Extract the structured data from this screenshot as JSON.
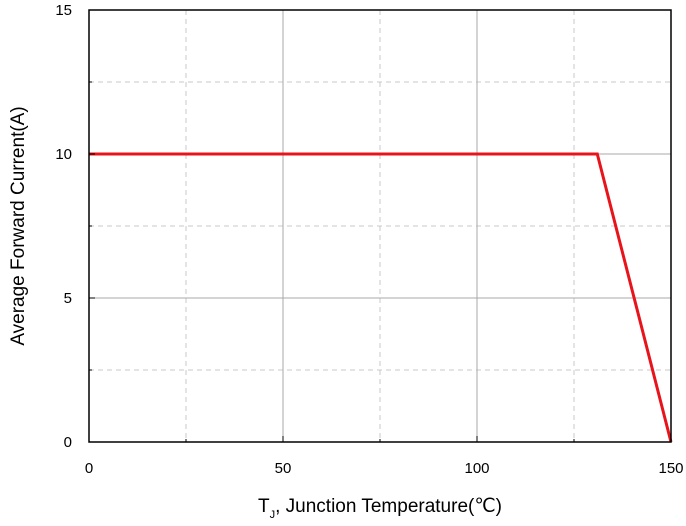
{
  "chart_data": {
    "type": "line",
    "title": "",
    "xlabel_main": "T",
    "xlabel_sub": "J",
    "xlabel_rest": ", Junction Temperature(℃)",
    "ylabel": "Average Forward Current(A)",
    "xlim": [
      0,
      150
    ],
    "ylim": [
      0,
      15
    ],
    "x_ticks": [
      0,
      50,
      100,
      150
    ],
    "x_tick_labels": [
      "0",
      "50",
      "100",
      "150"
    ],
    "y_ticks": [
      0,
      5,
      10,
      15
    ],
    "y_tick_labels": [
      "0",
      "5",
      "10",
      "15"
    ],
    "major_grid_x": [
      50,
      100
    ],
    "major_grid_y": [
      5,
      10
    ],
    "minor_grid_x": [
      25,
      75,
      125
    ],
    "minor_grid_y": [
      2.5,
      7.5,
      12.5
    ],
    "grid": true,
    "legend": "none",
    "series": [
      {
        "color": "#e8141b",
        "points": [
          {
            "x": 0,
            "y": 10
          },
          {
            "x": 131,
            "y": 10
          },
          {
            "x": 150,
            "y": 0
          }
        ]
      }
    ]
  }
}
